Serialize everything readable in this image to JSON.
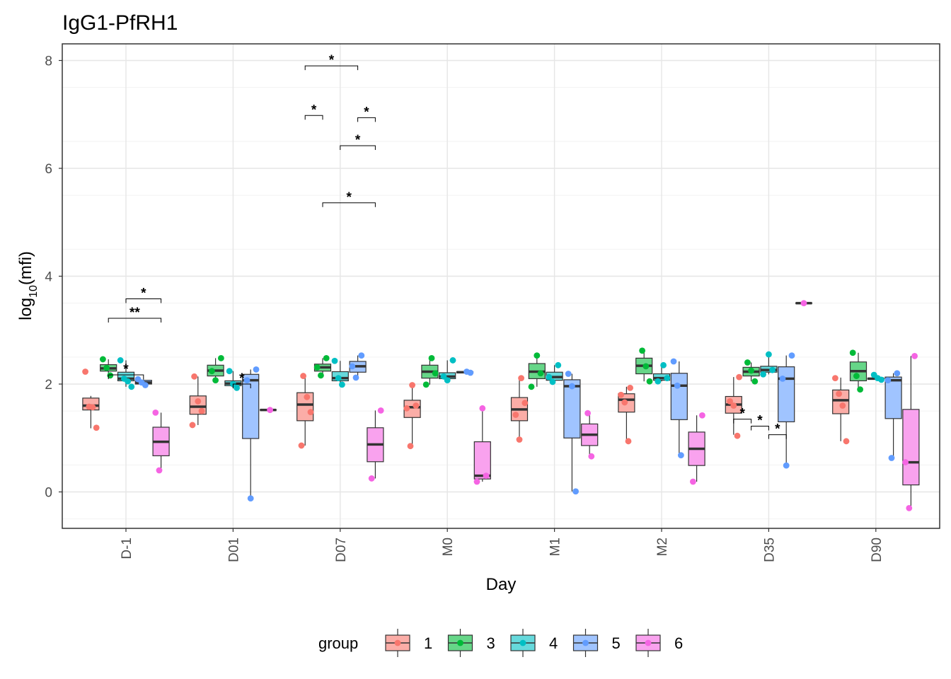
{
  "chart_data": {
    "type": "boxplot",
    "title": "IgG1-PfRH1",
    "xlabel": "Day",
    "ylabel_main": "log",
    "ylabel_sub": "10",
    "ylabel_tail": "(mfi)",
    "ylim": [
      -0.68,
      8.3
    ],
    "yticks": [
      0,
      2,
      4,
      6,
      8
    ],
    "categories": [
      "D-1",
      "D01",
      "D07",
      "M0",
      "M1",
      "M2",
      "D35",
      "D90"
    ],
    "legend": {
      "title": "group",
      "position": "bottom"
    },
    "series": [
      {
        "name": "1",
        "color": "#F8766D",
        "fill": "#FBADA7",
        "boxes": [
          {
            "cat": 0,
            "min": 1.18,
            "q1": 1.52,
            "median": 1.6,
            "q3": 1.74,
            "max": 1.78
          },
          {
            "cat": 1,
            "min": 1.24,
            "q1": 1.44,
            "median": 1.58,
            "q3": 1.78,
            "max": 2.14
          },
          {
            "cat": 2,
            "min": 0.86,
            "q1": 1.32,
            "median": 1.62,
            "q3": 1.84,
            "max": 2.14
          },
          {
            "cat": 3,
            "min": 0.88,
            "q1": 1.38,
            "median": 1.57,
            "q3": 1.7,
            "max": 1.98
          },
          {
            "cat": 4,
            "min": 0.97,
            "q1": 1.32,
            "median": 1.53,
            "q3": 1.75,
            "max": 2.1
          },
          {
            "cat": 5,
            "min": 0.94,
            "q1": 1.48,
            "median": 1.71,
            "q3": 1.82,
            "max": 1.95
          },
          {
            "cat": 6,
            "min": 1.06,
            "q1": 1.46,
            "median": 1.62,
            "q3": 1.77,
            "max": 2.13
          },
          {
            "cat": 7,
            "min": 0.94,
            "q1": 1.45,
            "median": 1.7,
            "q3": 1.89,
            "max": 2.12
          }
        ],
        "points": [
          [
            0,
            2.23
          ],
          [
            0,
            1.58
          ],
          [
            0,
            1.57
          ],
          [
            0,
            1.19
          ],
          [
            1,
            2.14
          ],
          [
            1,
            1.68
          ],
          [
            1,
            1.5
          ],
          [
            1,
            1.24
          ],
          [
            2,
            2.15
          ],
          [
            2,
            1.76
          ],
          [
            2,
            1.48
          ],
          [
            2,
            0.86
          ],
          [
            3,
            1.98
          ],
          [
            3,
            1.6
          ],
          [
            3,
            1.55
          ],
          [
            3,
            0.85
          ],
          [
            4,
            2.11
          ],
          [
            4,
            1.65
          ],
          [
            4,
            1.43
          ],
          [
            4,
            0.97
          ],
          [
            5,
            1.93
          ],
          [
            5,
            1.8
          ],
          [
            5,
            1.66
          ],
          [
            5,
            0.94
          ],
          [
            6,
            2.13
          ],
          [
            6,
            1.68
          ],
          [
            6,
            1.6
          ],
          [
            6,
            1.04
          ],
          [
            7,
            2.11
          ],
          [
            7,
            1.82
          ],
          [
            7,
            1.6
          ],
          [
            7,
            0.94
          ]
        ]
      },
      {
        "name": "3",
        "color": "#00BA38",
        "fill": "#66D688",
        "boxes": [
          {
            "cat": 0,
            "min": 2.16,
            "q1": 2.24,
            "median": 2.29,
            "q3": 2.36,
            "max": 2.46
          },
          {
            "cat": 1,
            "min": 2.07,
            "q1": 2.15,
            "median": 2.25,
            "q3": 2.35,
            "max": 2.48
          },
          {
            "cat": 2,
            "min": 2.15,
            "q1": 2.24,
            "median": 2.31,
            "q3": 2.37,
            "max": 2.48
          },
          {
            "cat": 3,
            "min": 1.99,
            "q1": 2.11,
            "median": 2.23,
            "q3": 2.35,
            "max": 2.48
          },
          {
            "cat": 4,
            "min": 1.95,
            "q1": 2.1,
            "median": 2.23,
            "q3": 2.38,
            "max": 2.53
          },
          {
            "cat": 5,
            "min": 2.05,
            "q1": 2.19,
            "median": 2.34,
            "q3": 2.48,
            "max": 2.62
          },
          {
            "cat": 6,
            "min": 2.05,
            "q1": 2.15,
            "median": 2.23,
            "q3": 2.31,
            "max": 2.4
          },
          {
            "cat": 7,
            "min": 1.9,
            "q1": 2.06,
            "median": 2.24,
            "q3": 2.41,
            "max": 2.58
          }
        ],
        "points": [
          [
            0,
            2.46
          ],
          [
            0,
            2.3
          ],
          [
            0,
            2.16
          ],
          [
            1,
            2.48
          ],
          [
            1,
            2.24
          ],
          [
            1,
            2.07
          ],
          [
            2,
            2.48
          ],
          [
            2,
            2.31
          ],
          [
            2,
            2.16
          ],
          [
            3,
            2.48
          ],
          [
            3,
            2.2
          ],
          [
            3,
            1.99
          ],
          [
            4,
            2.53
          ],
          [
            4,
            2.2
          ],
          [
            4,
            1.95
          ],
          [
            5,
            2.62
          ],
          [
            5,
            2.33
          ],
          [
            5,
            2.05
          ],
          [
            6,
            2.4
          ],
          [
            6,
            2.25
          ],
          [
            6,
            2.05
          ],
          [
            7,
            2.58
          ],
          [
            7,
            2.15
          ],
          [
            7,
            1.9
          ]
        ]
      },
      {
        "name": "4",
        "color": "#00BFC4",
        "fill": "#66D9DC",
        "boxes": [
          {
            "cat": 0,
            "min": 1.95,
            "q1": 2.06,
            "median": 2.1,
            "q3": 2.22,
            "max": 2.44
          },
          {
            "cat": 1,
            "min": 1.93,
            "q1": 1.97,
            "median": 2.01,
            "q3": 2.06,
            "max": 2.24
          },
          {
            "cat": 2,
            "min": 1.99,
            "q1": 2.06,
            "median": 2.11,
            "q3": 2.23,
            "max": 2.43
          },
          {
            "cat": 3,
            "min": 2.07,
            "q1": 2.1,
            "median": 2.14,
            "q3": 2.21,
            "max": 2.44
          },
          {
            "cat": 4,
            "min": 2.04,
            "q1": 2.07,
            "median": 2.13,
            "q3": 2.22,
            "max": 2.35
          },
          {
            "cat": 5,
            "min": 2.05,
            "q1": 2.07,
            "median": 2.11,
            "q3": 2.19,
            "max": 2.35
          },
          {
            "cat": 6,
            "min": 2.18,
            "q1": 2.22,
            "median": 2.26,
            "q3": 2.33,
            "max": 2.55
          },
          {
            "cat": 7,
            "min": 2.08,
            "q1": 2.09,
            "median": 2.1,
            "q3": 2.11,
            "max": 2.17
          }
        ],
        "points": [
          [
            0,
            2.44
          ],
          [
            0,
            2.1
          ],
          [
            0,
            2.05
          ],
          [
            0,
            1.95
          ],
          [
            1,
            2.24
          ],
          [
            1,
            2.0
          ],
          [
            1,
            1.93
          ],
          [
            2,
            2.43
          ],
          [
            2,
            2.11
          ],
          [
            2,
            1.99
          ],
          [
            3,
            2.44
          ],
          [
            3,
            2.14
          ],
          [
            3,
            2.07
          ],
          [
            4,
            2.35
          ],
          [
            4,
            2.13
          ],
          [
            4,
            2.04
          ],
          [
            5,
            2.35
          ],
          [
            5,
            2.11
          ],
          [
            5,
            2.05
          ],
          [
            6,
            2.55
          ],
          [
            6,
            2.26
          ],
          [
            6,
            2.18
          ],
          [
            7,
            2.17
          ],
          [
            7,
            2.11
          ],
          [
            7,
            2.08
          ]
        ]
      },
      {
        "name": "5",
        "color": "#619CFF",
        "fill": "#A0C4FF",
        "boxes": [
          {
            "cat": 0,
            "min": 1.98,
            "q1": 2.0,
            "median": 2.03,
            "q3": 2.07,
            "max": 2.09
          },
          {
            "cat": 1,
            "min": -0.12,
            "q1": 0.99,
            "median": 2.07,
            "q3": 2.18,
            "max": 2.27
          },
          {
            "cat": 2,
            "min": 2.12,
            "q1": 2.22,
            "median": 2.33,
            "q3": 2.42,
            "max": 2.53
          },
          {
            "cat": 3,
            "min": 2.21,
            "q1": 2.21,
            "median": 2.22,
            "q3": 2.23,
            "max": 2.23
          },
          {
            "cat": 4,
            "min": 0.01,
            "q1": 1.0,
            "median": 1.96,
            "q3": 2.08,
            "max": 2.19
          },
          {
            "cat": 5,
            "min": 0.68,
            "q1": 1.34,
            "median": 1.97,
            "q3": 2.2,
            "max": 2.42
          },
          {
            "cat": 6,
            "min": 0.49,
            "q1": 1.3,
            "median": 2.1,
            "q3": 2.32,
            "max": 2.53
          },
          {
            "cat": 7,
            "min": 0.63,
            "q1": 1.36,
            "median": 2.07,
            "q3": 2.13,
            "max": 2.2
          }
        ],
        "points": [
          [
            0,
            2.09
          ],
          [
            0,
            2.03
          ],
          [
            0,
            1.98
          ],
          [
            1,
            2.27
          ],
          [
            1,
            2.07
          ],
          [
            1,
            -0.12
          ],
          [
            2,
            2.53
          ],
          [
            2,
            2.33
          ],
          [
            2,
            2.12
          ],
          [
            3,
            2.23
          ],
          [
            3,
            2.21
          ],
          [
            4,
            2.19
          ],
          [
            4,
            1.96
          ],
          [
            4,
            0.01
          ],
          [
            5,
            2.42
          ],
          [
            5,
            1.97
          ],
          [
            5,
            0.68
          ],
          [
            6,
            2.53
          ],
          [
            6,
            2.1
          ],
          [
            6,
            0.49
          ],
          [
            7,
            2.2
          ],
          [
            7,
            2.07
          ],
          [
            7,
            0.63
          ]
        ]
      },
      {
        "name": "6",
        "color": "#F564E3",
        "fill": "#F9A2EE",
        "boxes": [
          {
            "cat": 0,
            "min": 0.4,
            "q1": 0.67,
            "median": 0.93,
            "q3": 1.2,
            "max": 1.47
          },
          {
            "cat": 1,
            "min": 1.52,
            "q1": 1.52,
            "median": 1.52,
            "q3": 1.52,
            "max": 1.52
          },
          {
            "cat": 2,
            "min": 0.25,
            "q1": 0.56,
            "median": 0.88,
            "q3": 1.19,
            "max": 1.51
          },
          {
            "cat": 3,
            "min": 0.19,
            "q1": 0.24,
            "median": 0.3,
            "q3": 0.93,
            "max": 1.55
          },
          {
            "cat": 4,
            "min": 0.66,
            "q1": 0.86,
            "median": 1.06,
            "q3": 1.26,
            "max": 1.46
          },
          {
            "cat": 5,
            "min": 0.19,
            "q1": 0.49,
            "median": 0.8,
            "q3": 1.11,
            "max": 1.42
          },
          {
            "cat": 6,
            "min": 3.5,
            "q1": 3.5,
            "median": 3.5,
            "q3": 3.5,
            "max": 3.5
          },
          {
            "cat": 7,
            "min": -0.3,
            "q1": 0.13,
            "median": 0.55,
            "q3": 1.53,
            "max": 2.52
          }
        ],
        "points": [
          [
            0,
            1.47
          ],
          [
            0,
            0.4
          ],
          [
            1,
            1.52
          ],
          [
            2,
            1.51
          ],
          [
            2,
            0.25
          ],
          [
            3,
            1.55
          ],
          [
            3,
            0.3
          ],
          [
            3,
            0.19
          ],
          [
            4,
            1.46
          ],
          [
            4,
            0.66
          ],
          [
            5,
            1.42
          ],
          [
            5,
            0.19
          ],
          [
            6,
            3.5
          ],
          [
            7,
            2.52
          ],
          [
            7,
            0.55
          ],
          [
            7,
            -0.3
          ]
        ]
      }
    ],
    "annotations": [
      {
        "label": "*",
        "from": [
          0,
          1
        ],
        "to": [
          0,
          3
        ],
        "y": 2.17
      },
      {
        "label": "**",
        "from": [
          0,
          1
        ],
        "to": [
          0,
          4
        ],
        "y": 3.22
      },
      {
        "label": "*",
        "from": [
          0,
          2
        ],
        "to": [
          0,
          4
        ],
        "y": 3.58
      },
      {
        "label": "*",
        "from": [
          1,
          2
        ],
        "to": [
          1,
          3
        ],
        "y": 2.0
      },
      {
        "label": "*",
        "from": [
          2,
          0
        ],
        "to": [
          2,
          1
        ],
        "y": 6.98
      },
      {
        "label": "*",
        "from": [
          2,
          0
        ],
        "to": [
          2,
          3
        ],
        "y": 7.9
      },
      {
        "label": "*",
        "from": [
          2,
          3
        ],
        "to": [
          2,
          4
        ],
        "y": 6.94
      },
      {
        "label": "*",
        "from": [
          2,
          2
        ],
        "to": [
          2,
          4
        ],
        "y": 6.42
      },
      {
        "label": "*",
        "from": [
          2,
          1
        ],
        "to": [
          2,
          4
        ],
        "y": 5.36
      },
      {
        "label": "*",
        "from": [
          6,
          0
        ],
        "to": [
          6,
          1
        ],
        "y": 1.35
      },
      {
        "label": "*",
        "from": [
          6,
          1
        ],
        "to": [
          6,
          2
        ],
        "y": 1.22
      },
      {
        "label": "*",
        "from": [
          6,
          2
        ],
        "to": [
          6,
          3
        ],
        "y": 1.06
      }
    ]
  }
}
